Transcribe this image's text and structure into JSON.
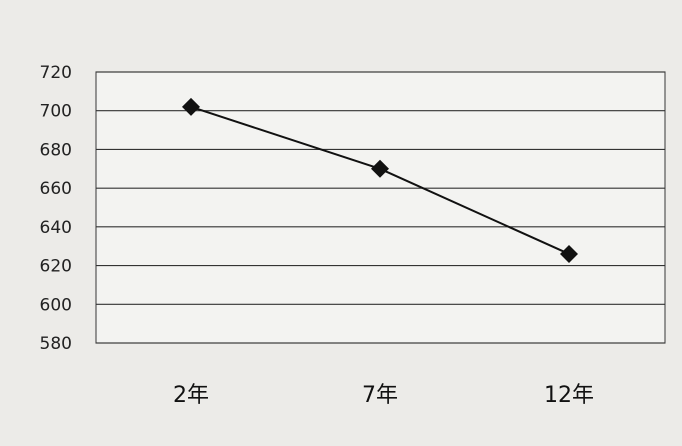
{
  "chart_data": {
    "type": "line",
    "title": "",
    "xlabel": "",
    "ylabel": "",
    "categories": [
      "2年",
      "7年",
      "12年"
    ],
    "series": [
      {
        "values": [
          702,
          670,
          626
        ]
      }
    ],
    "ylim": [
      580,
      720
    ],
    "yticks": [
      "720",
      "700",
      "680",
      "660",
      "640",
      "620",
      "600",
      "580"
    ],
    "grid": true,
    "legend": "none",
    "colors": {
      "line": "#111111",
      "marker": "#111111",
      "grid": "#333333",
      "plot_background": "#f3f3f1",
      "page_background": "#ecebe8"
    }
  }
}
